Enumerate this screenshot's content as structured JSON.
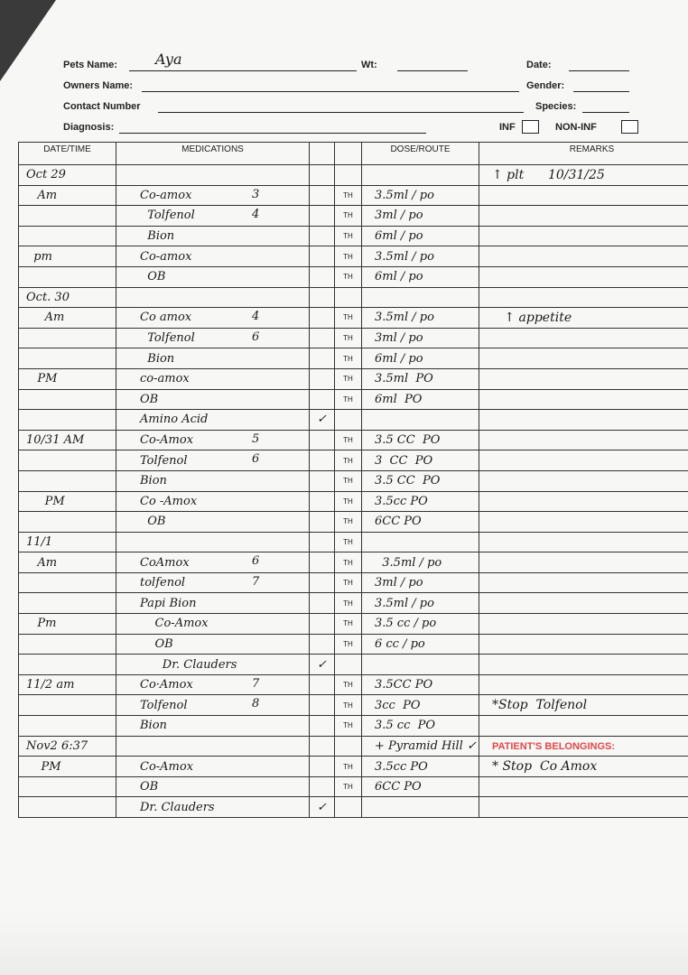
{
  "form": {
    "pets_name_label": "Pets Name:",
    "pets_name_value": "Aya",
    "wt_label": "Wt:",
    "date_label": "Date:",
    "owners_name_label": "Owners Name:",
    "gender_label": "Gender:",
    "contact_label": "Contact Number",
    "species_label": "Species:",
    "diagnosis_label": "Diagnosis:",
    "inf_label": "INF",
    "noninf_label": "NON-INF"
  },
  "table": {
    "headers": [
      "DATE/TIME",
      "MEDICATIONS",
      "",
      "",
      "DOSE/ROUTE",
      "REMARKS"
    ],
    "rows": [
      {
        "date": "Oct 29",
        "med": "",
        "num": "",
        "chk": "",
        "route": "",
        "dose": "",
        "rem": "↑ plt      10/31/25"
      },
      {
        "date": "   Am",
        "med": "Co-amox",
        "num": "3",
        "chk": "",
        "route": "TH",
        "dose": "3.5ml / po",
        "rem": ""
      },
      {
        "date": "",
        "med": "  Tolfenol",
        "num": "4",
        "chk": "",
        "route": "TH",
        "dose": "3ml / po",
        "rem": ""
      },
      {
        "date": "",
        "med": "  Bion",
        "num": "",
        "chk": "",
        "route": "TH",
        "dose": "6ml / po",
        "rem": ""
      },
      {
        "date": "  pm",
        "med": "Co-amox",
        "num": "",
        "chk": "",
        "route": "TH",
        "dose": "3.5ml / po",
        "rem": ""
      },
      {
        "date": "",
        "med": "  OB",
        "num": "",
        "chk": "",
        "route": "TH",
        "dose": "6ml / po",
        "rem": ""
      },
      {
        "date": "Oct. 30",
        "med": "",
        "num": "",
        "chk": "",
        "route": "",
        "dose": "",
        "rem": ""
      },
      {
        "date": "     Am",
        "med": "Co amox",
        "num": "4",
        "chk": "",
        "route": "TH",
        "dose": "3.5ml / po",
        "rem": "   ↑ appetite"
      },
      {
        "date": "",
        "med": "  Tolfenol",
        "num": "6",
        "chk": "",
        "route": "TH",
        "dose": "3ml / po",
        "rem": ""
      },
      {
        "date": "",
        "med": "  Bion",
        "num": "",
        "chk": "",
        "route": "TH",
        "dose": "6ml / po",
        "rem": ""
      },
      {
        "date": "   PM",
        "med": "co-amox",
        "num": "",
        "chk": "",
        "route": "TH",
        "dose": "3.5ml  PO",
        "rem": ""
      },
      {
        "date": "",
        "med": "OB",
        "num": "",
        "chk": "",
        "route": "TH",
        "dose": "6ml  PO",
        "rem": ""
      },
      {
        "date": "",
        "med": "Amino Acid",
        "num": "",
        "chk": "✓",
        "route": "",
        "dose": "",
        "rem": ""
      },
      {
        "date": "10/31 AM",
        "med": "Co-Amox",
        "num": "5",
        "chk": "",
        "route": "TH",
        "dose": "3.5 CC  PO",
        "rem": ""
      },
      {
        "date": "",
        "med": "Tolfenol",
        "num": "6",
        "chk": "",
        "route": "TH",
        "dose": "3  CC  PO",
        "rem": ""
      },
      {
        "date": "",
        "med": "Bion",
        "num": "",
        "chk": "",
        "route": "TH",
        "dose": "3.5 CC  PO",
        "rem": ""
      },
      {
        "date": "     PM",
        "med": "Co -Amox",
        "num": "",
        "chk": "",
        "route": "TH",
        "dose": "3.5cc PO",
        "rem": ""
      },
      {
        "date": "",
        "med": "  OB",
        "num": "",
        "chk": "",
        "route": "TH",
        "dose": "6CC PO",
        "rem": ""
      },
      {
        "date": "11/1",
        "med": "",
        "num": "",
        "chk": "",
        "route": "TH",
        "dose": "",
        "rem": ""
      },
      {
        "date": "   Am",
        "med": "CoAmox",
        "num": "6",
        "chk": "",
        "route": "TH",
        "dose": "  3.5ml / po",
        "rem": ""
      },
      {
        "date": "",
        "med": "tolfenol",
        "num": "7",
        "chk": "",
        "route": "TH",
        "dose": "3ml / po",
        "rem": ""
      },
      {
        "date": "",
        "med": "Papi Bion",
        "num": "",
        "chk": "",
        "route": "TH",
        "dose": "3.5ml / po",
        "rem": ""
      },
      {
        "date": "   Pm",
        "med": "    Co-Amox",
        "num": "",
        "chk": "",
        "route": "TH",
        "dose": "3.5 cc / po",
        "rem": ""
      },
      {
        "date": "",
        "med": "    OB",
        "num": "",
        "chk": "",
        "route": "TH",
        "dose": "6 cc / po",
        "rem": ""
      },
      {
        "date": "",
        "med": "      Dr. Clauders",
        "num": "",
        "chk": "✓",
        "route": "",
        "dose": "",
        "rem": ""
      },
      {
        "date": "11/2 am",
        "med": "Co·Amox",
        "num": "7",
        "chk": "",
        "route": "TH",
        "dose": "3.5CC PO",
        "rem": ""
      },
      {
        "date": "",
        "med": "Tolfenol",
        "num": "8",
        "chk": "",
        "route": "TH",
        "dose": "3cc  PO",
        "rem": "*Stop  Tolfenol"
      },
      {
        "date": "",
        "med": "Bion",
        "num": "",
        "chk": "",
        "route": "TH",
        "dose": "3.5 cc  PO",
        "rem": ""
      },
      {
        "date": "Nov2 6:37",
        "med": "",
        "num": "",
        "chk": "",
        "route": "",
        "dose": "+ Pyramid Hill ✓",
        "rem": "PATIENT'S BELONGINGS:"
      },
      {
        "date": "    PM",
        "med": "Co-Amox",
        "num": "",
        "chk": "",
        "route": "TH",
        "dose": "3.5cc PO",
        "rem": "* Stop  Co Amox"
      },
      {
        "date": "",
        "med": "OB",
        "num": "",
        "chk": "",
        "route": "TH",
        "dose": "6CC PO",
        "rem": ""
      },
      {
        "date": "",
        "med": "Dr. Clauders",
        "num": "",
        "chk": "✓",
        "route": "",
        "dose": "",
        "rem": ""
      }
    ]
  },
  "colors": {
    "belongings_label": "#e0474a",
    "ink": "#1a1a1a"
  }
}
